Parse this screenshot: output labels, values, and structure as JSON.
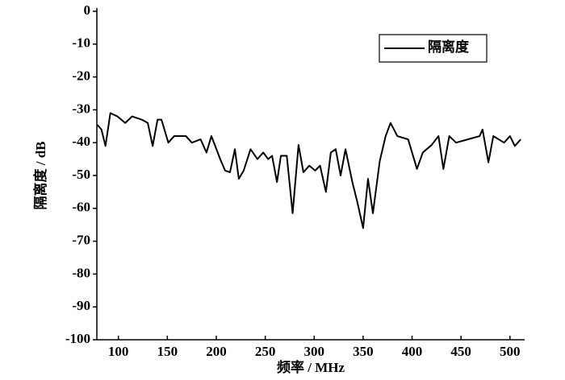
{
  "chart_data": {
    "type": "line",
    "x_label": "频率 / MHz",
    "y_label": "隔离度 / dB",
    "x": [
      78.6,
      82.7,
      86.8,
      91.8,
      99,
      107,
      114,
      124,
      130,
      135,
      140,
      144,
      151,
      157,
      169,
      175,
      184,
      190,
      195,
      204,
      209,
      214,
      219,
      223,
      228,
      235,
      242,
      248,
      253,
      257,
      262,
      266,
      272,
      278,
      284,
      289,
      295,
      301,
      306,
      312,
      317,
      322,
      327,
      332,
      339,
      344,
      350,
      355,
      360,
      367,
      373,
      378,
      385,
      396,
      405,
      411,
      420,
      427,
      432,
      438,
      445,
      457,
      469,
      472,
      478,
      483,
      494,
      500,
      505,
      511
    ],
    "series": [
      {
        "name": "隔离度",
        "color": "#000000",
        "values": [
          -34.6,
          -36,
          -41,
          -31,
          -32,
          -34,
          -32,
          -33,
          -34,
          -41,
          -33,
          -33,
          -40,
          -38,
          -38,
          -40,
          -39,
          -43,
          -38,
          -45,
          -48.5,
          -49,
          -42,
          -51,
          -48.5,
          -42,
          -45,
          -43,
          -45,
          -44,
          -52,
          -44,
          -44,
          -61.5,
          -40.7,
          -49,
          -47,
          -48.5,
          -47,
          -55,
          -43,
          -42,
          -50,
          -42,
          -52,
          -58,
          -66,
          -51,
          -61.5,
          -45.6,
          -38,
          -34,
          -38,
          -39,
          -48,
          -43,
          -40.7,
          -38,
          -48,
          -38,
          -40,
          -39,
          -38,
          -36,
          -46,
          -38,
          -40,
          -38,
          -41,
          -39
        ]
      }
    ],
    "xlim": [
      78,
      515
    ],
    "ylim": [
      -100,
      0
    ],
    "xticks": [
      100,
      150,
      200,
      250,
      300,
      350,
      400,
      450,
      500
    ],
    "yticks": [
      -100,
      -90,
      -80,
      -70,
      -60,
      -50,
      -40,
      -30,
      -20,
      -10,
      0
    ],
    "legend": "upper right"
  }
}
